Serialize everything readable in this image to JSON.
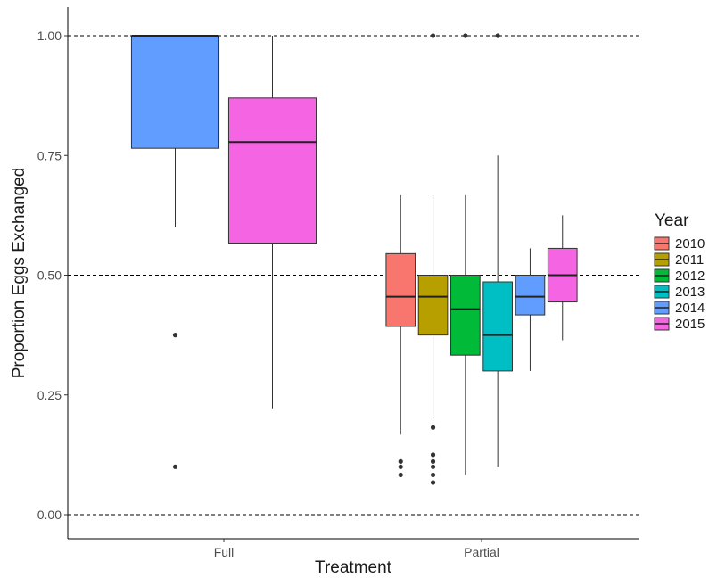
{
  "chart_data": {
    "type": "box",
    "xlabel": "Treatment",
    "ylabel": "Proportion Eggs Exchanged",
    "categories": [
      "Full",
      "Partial"
    ],
    "ylim": [
      -0.04,
      1.05
    ],
    "yticks": [
      0.0,
      0.25,
      0.5,
      0.75,
      1.0
    ],
    "ytick_labels": [
      "0.00",
      "0.25",
      "0.50",
      "0.75",
      "1.00"
    ],
    "reference_lines": [
      0.0,
      0.5,
      1.0
    ],
    "grid": false,
    "legend": {
      "title": "Year",
      "position": "right",
      "entries": [
        "2010",
        "2011",
        "2012",
        "2013",
        "2014",
        "2015"
      ]
    },
    "series": [
      {
        "name": "2010",
        "color": "#F8766D",
        "groups": [
          {
            "category": "Partial",
            "whisker_low": 0.167,
            "q1": 0.393,
            "median": 0.455,
            "q3": 0.545,
            "whisker_high": 0.667,
            "outliers": [
              0.083,
              0.1,
              0.111
            ]
          }
        ]
      },
      {
        "name": "2011",
        "color": "#B79F00",
        "groups": [
          {
            "category": "Partial",
            "whisker_low": 0.2,
            "q1": 0.375,
            "median": 0.455,
            "q3": 0.5,
            "whisker_high": 0.667,
            "outliers": [
              0.067,
              0.083,
              0.1,
              0.111,
              0.125,
              0.182,
              1.0
            ]
          }
        ]
      },
      {
        "name": "2012",
        "color": "#00BA38",
        "groups": [
          {
            "category": "Partial",
            "whisker_low": 0.083,
            "q1": 0.333,
            "median": 0.429,
            "q3": 0.5,
            "whisker_high": 0.667,
            "outliers": [
              1.0
            ]
          }
        ]
      },
      {
        "name": "2013",
        "color": "#00BFC4",
        "groups": [
          {
            "category": "Partial",
            "whisker_low": 0.1,
            "q1": 0.3,
            "median": 0.375,
            "q3": 0.486,
            "whisker_high": 0.75,
            "outliers": [
              1.0
            ]
          }
        ]
      },
      {
        "name": "2014",
        "color": "#619CFF",
        "groups": [
          {
            "category": "Full",
            "whisker_low": 0.6,
            "q1": 0.765,
            "median": 1.0,
            "q3": 1.0,
            "whisker_high": 1.0,
            "outliers": [
              0.1,
              0.375
            ]
          },
          {
            "category": "Partial",
            "whisker_low": 0.3,
            "q1": 0.417,
            "median": 0.455,
            "q3": 0.5,
            "whisker_high": 0.556,
            "outliers": []
          }
        ]
      },
      {
        "name": "2015",
        "color": "#F564E3",
        "groups": [
          {
            "category": "Full",
            "whisker_low": 0.222,
            "q1": 0.567,
            "median": 0.778,
            "q3": 0.87,
            "whisker_high": 1.0,
            "outliers": []
          },
          {
            "category": "Partial",
            "whisker_low": 0.364,
            "q1": 0.444,
            "median": 0.5,
            "q3": 0.556,
            "whisker_high": 0.625,
            "outliers": []
          }
        ]
      }
    ]
  }
}
